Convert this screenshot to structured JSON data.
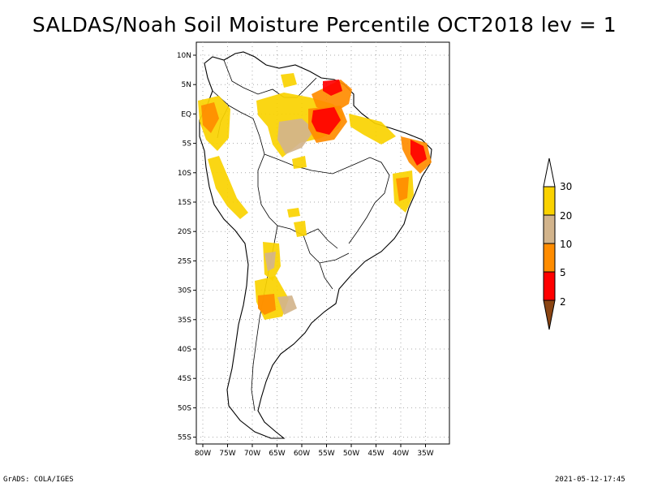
{
  "title": "SALDAS/Noah Soil Moisture Percentile OCT2018 lev = 1",
  "footer_left": "GrADS: COLA/IGES",
  "footer_right": "2021-05-12-17:45",
  "map": {
    "lon_labels": [
      "80W",
      "75W",
      "70W",
      "65W",
      "60W",
      "55W",
      "50W",
      "45W",
      "40W",
      "35W"
    ],
    "lat_labels": [
      "10N",
      "5N",
      "EQ",
      "5S",
      "10S",
      "15S",
      "20S",
      "25S",
      "30S",
      "35S",
      "40S",
      "45S",
      "50S",
      "55S"
    ]
  },
  "colorbar": {
    "labels": [
      "30",
      "20",
      "10",
      "5",
      "2"
    ],
    "colors": {
      "c30": "#fad200",
      "c20": "#d2b48c",
      "c10": "#ff8c00",
      "c5": "#ff0000",
      "c2": "#8b4513",
      "top": "#ffffff"
    }
  }
}
